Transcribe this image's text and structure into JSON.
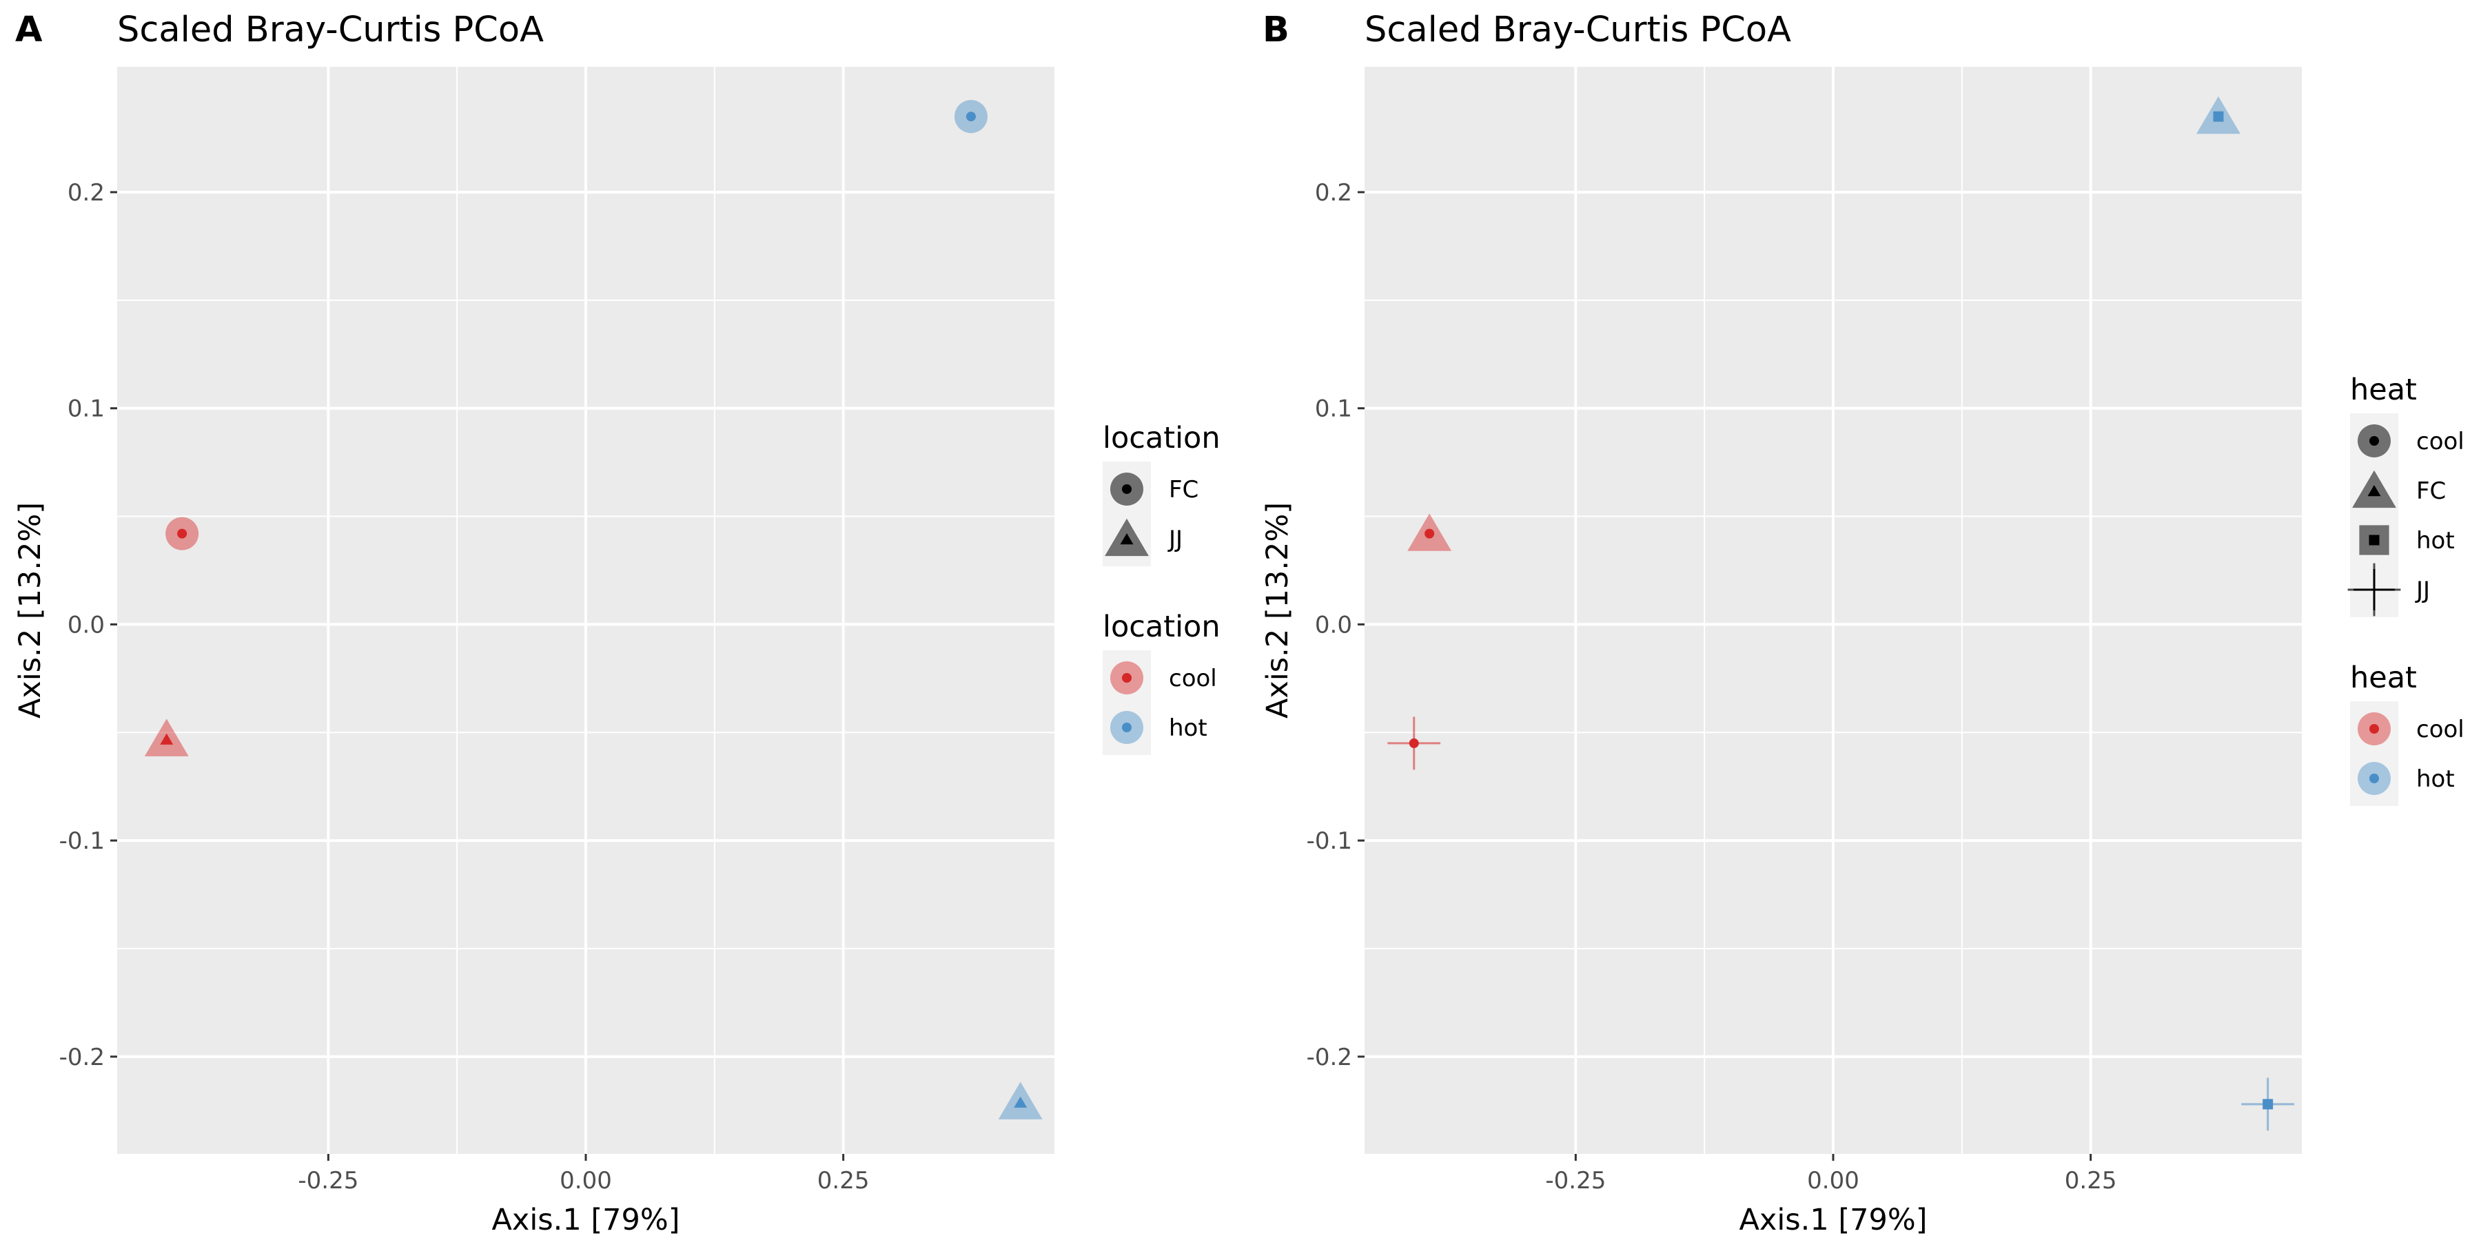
{
  "chart_data": [
    {
      "panel_tag": "A",
      "type": "scatter",
      "title": "Scaled Bray-Curtis PCoA",
      "xlabel": "Axis.1   [79%]",
      "ylabel": "Axis.2   [13.2%]",
      "xlim": [
        -0.455,
        0.455
      ],
      "ylim": [
        -0.245,
        0.258
      ],
      "x_ticks": [
        -0.25,
        0.0,
        0.25
      ],
      "x_tick_labels": [
        "-0.25",
        "0.00",
        "0.25"
      ],
      "y_ticks": [
        -0.2,
        -0.1,
        0.0,
        0.1,
        0.2
      ],
      "y_tick_labels": [
        "-0.2",
        "-0.1",
        "0.0",
        "0.1",
        "0.2"
      ],
      "grid": true,
      "points": [
        {
          "x": -0.392,
          "y": 0.042,
          "shape": "circle",
          "color": "cool",
          "center": "circle"
        },
        {
          "x": -0.407,
          "y": -0.053,
          "shape": "triangle",
          "color": "cool",
          "center": "triangle"
        },
        {
          "x": 0.374,
          "y": 0.235,
          "shape": "circle",
          "color": "hot",
          "center": "circle"
        },
        {
          "x": 0.422,
          "y": -0.221,
          "shape": "triangle",
          "color": "hot",
          "center": "triangle"
        }
      ],
      "legends": [
        {
          "title": "location",
          "kind": "shape",
          "entries": [
            {
              "label": "FC",
              "shape": "circle"
            },
            {
              "label": "JJ",
              "shape": "triangle"
            }
          ]
        },
        {
          "title": "location",
          "kind": "color",
          "entries": [
            {
              "label": "cool",
              "color": "#d62728"
            },
            {
              "label": "hot",
              "color": "#4a8ec8"
            }
          ]
        }
      ]
    },
    {
      "panel_tag": "B",
      "type": "scatter",
      "title": "Scaled Bray-Curtis PCoA",
      "xlabel": "Axis.1   [79%]",
      "ylabel": "Axis.2   [13.2%]",
      "xlim": [
        -0.455,
        0.455
      ],
      "ylim": [
        -0.245,
        0.258
      ],
      "x_ticks": [
        -0.25,
        0.0,
        0.25
      ],
      "x_tick_labels": [
        "-0.25",
        "0.00",
        "0.25"
      ],
      "y_ticks": [
        -0.2,
        -0.1,
        0.0,
        0.1,
        0.2
      ],
      "y_tick_labels": [
        "-0.2",
        "-0.1",
        "0.0",
        "0.1",
        "0.2"
      ],
      "grid": true,
      "points": [
        {
          "x": -0.392,
          "y": 0.042,
          "shape": "triangle",
          "color": "cool",
          "center": "circle"
        },
        {
          "x": -0.407,
          "y": -0.055,
          "shape": "plus",
          "color": "cool",
          "center": "circle"
        },
        {
          "x": 0.374,
          "y": 0.235,
          "shape": "triangle",
          "color": "hot",
          "center": "square"
        },
        {
          "x": 0.422,
          "y": -0.222,
          "shape": "plus",
          "color": "hot",
          "center": "square"
        }
      ],
      "legends": [
        {
          "title": "heat",
          "kind": "shape",
          "entries": [
            {
              "label": "cool",
              "shape": "circle"
            },
            {
              "label": "FC",
              "shape": "triangle"
            },
            {
              "label": "hot",
              "shape": "square"
            },
            {
              "label": "JJ",
              "shape": "plus"
            }
          ]
        },
        {
          "title": "heat",
          "kind": "color",
          "entries": [
            {
              "label": "cool",
              "color": "#d62728"
            },
            {
              "label": "hot",
              "color": "#4a8ec8"
            }
          ]
        }
      ]
    }
  ],
  "colors": {
    "panel_bg": "#ebebeb",
    "grid": "#ffffff",
    "cool": "#d62728",
    "hot": "#4a8ec8",
    "shape_key": "#444444"
  }
}
